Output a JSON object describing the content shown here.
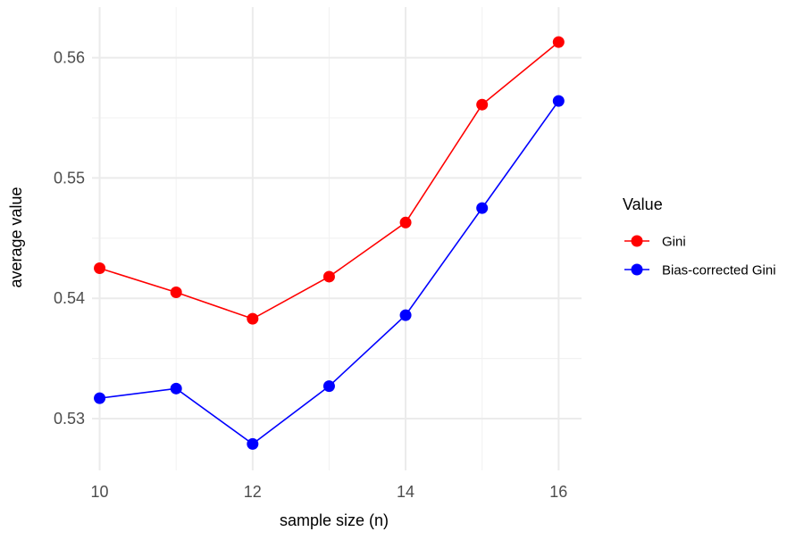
{
  "chart_data": {
    "type": "line",
    "title": "",
    "xlabel": "sample size (n)",
    "ylabel": "average value",
    "x": [
      10,
      11,
      12,
      13,
      14,
      15,
      16
    ],
    "xticks": [
      10,
      12,
      14,
      16
    ],
    "yticks": [
      0.53,
      0.54,
      0.55,
      0.56
    ],
    "xlim": [
      9.9,
      16.3
    ],
    "ylim": [
      0.5257,
      0.5642
    ],
    "grid": true,
    "legend": {
      "title": "Value",
      "position": "right"
    },
    "series": [
      {
        "name": "Gini",
        "color": "#ff0000",
        "values": [
          0.5425,
          0.5405,
          0.5383,
          0.5418,
          0.5463,
          0.5561,
          0.5613
        ]
      },
      {
        "name": "Bias-corrected Gini",
        "color": "#0000ff",
        "values": [
          0.5317,
          0.5325,
          0.5279,
          0.5327,
          0.5386,
          0.5475,
          0.5564
        ]
      }
    ]
  }
}
